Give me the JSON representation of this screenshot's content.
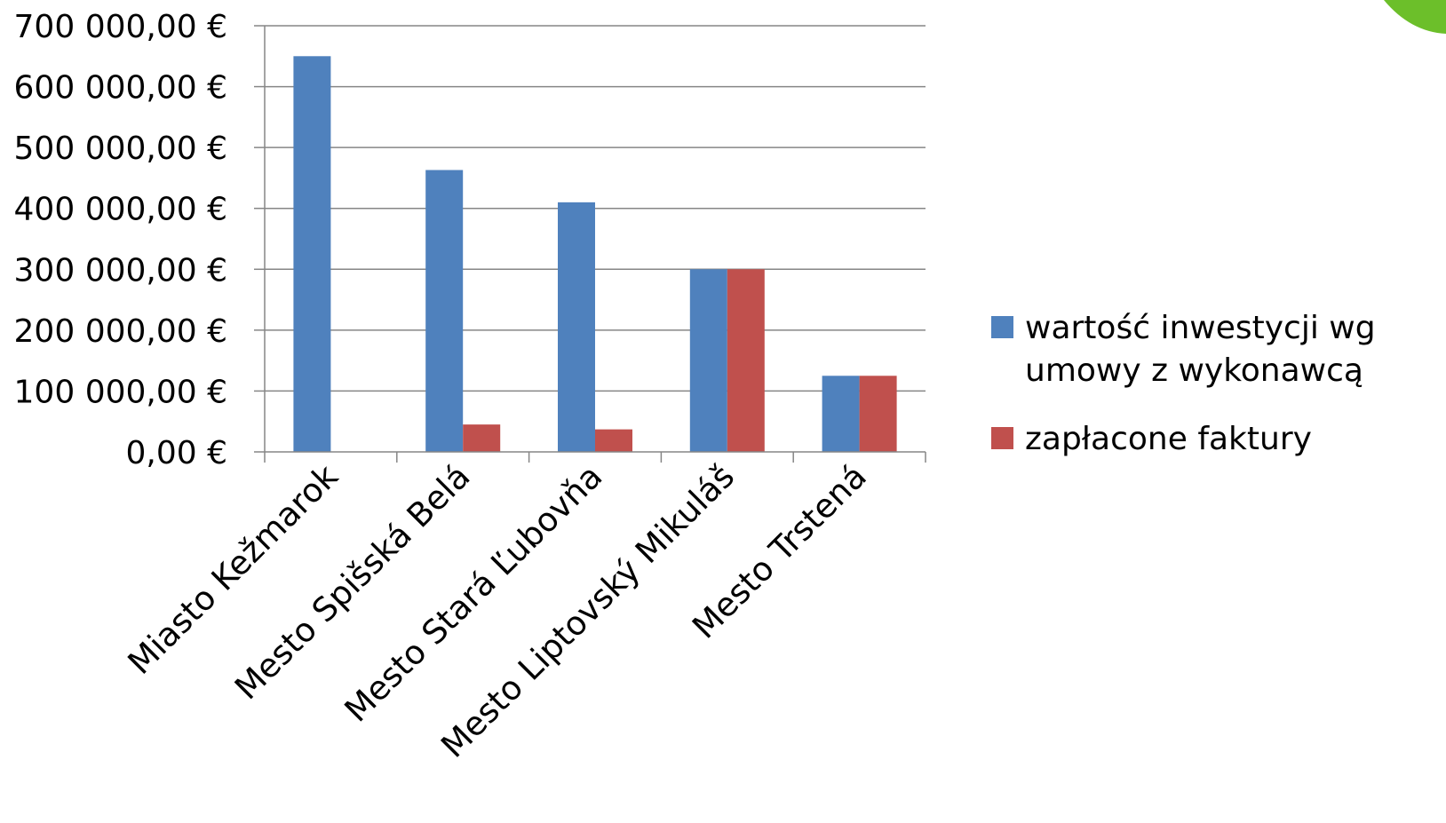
{
  "chart_data": {
    "type": "bar",
    "categories": [
      "Miasto Kežmarok",
      "Mesto Spišská Belá",
      "Mesto Stará Ľubovňa",
      "Mesto Liptovský Mikuláš",
      "Mesto Trstená"
    ],
    "series": [
      {
        "name": "wartość inwestycji wg umowy z wykonawcą",
        "legend_lines": [
          "wartość inwestycji wg",
          "umowy z wykonawcą"
        ],
        "color": "#4F81BD",
        "values": [
          650000,
          463000,
          410000,
          300000,
          125000
        ]
      },
      {
        "name": "zapłacone faktury",
        "legend_lines": [
          "zapłacone faktury"
        ],
        "color": "#C0504D",
        "values": [
          0,
          45000,
          37000,
          300000,
          125000
        ]
      }
    ],
    "y_ticks": [
      "0,00 €",
      "100 000,00 €",
      "200 000,00 €",
      "300 000,00 €",
      "400 000,00 €",
      "500 000,00 €",
      "600 000,00 €",
      "700 000,00 €"
    ],
    "ylim": [
      0,
      700000
    ],
    "ytick_step": 100000,
    "grid": true,
    "legend_position": "right",
    "title": "",
    "xlabel": "",
    "ylabel": ""
  },
  "decor": {
    "corner_accent_color": "#6CBF2A"
  }
}
